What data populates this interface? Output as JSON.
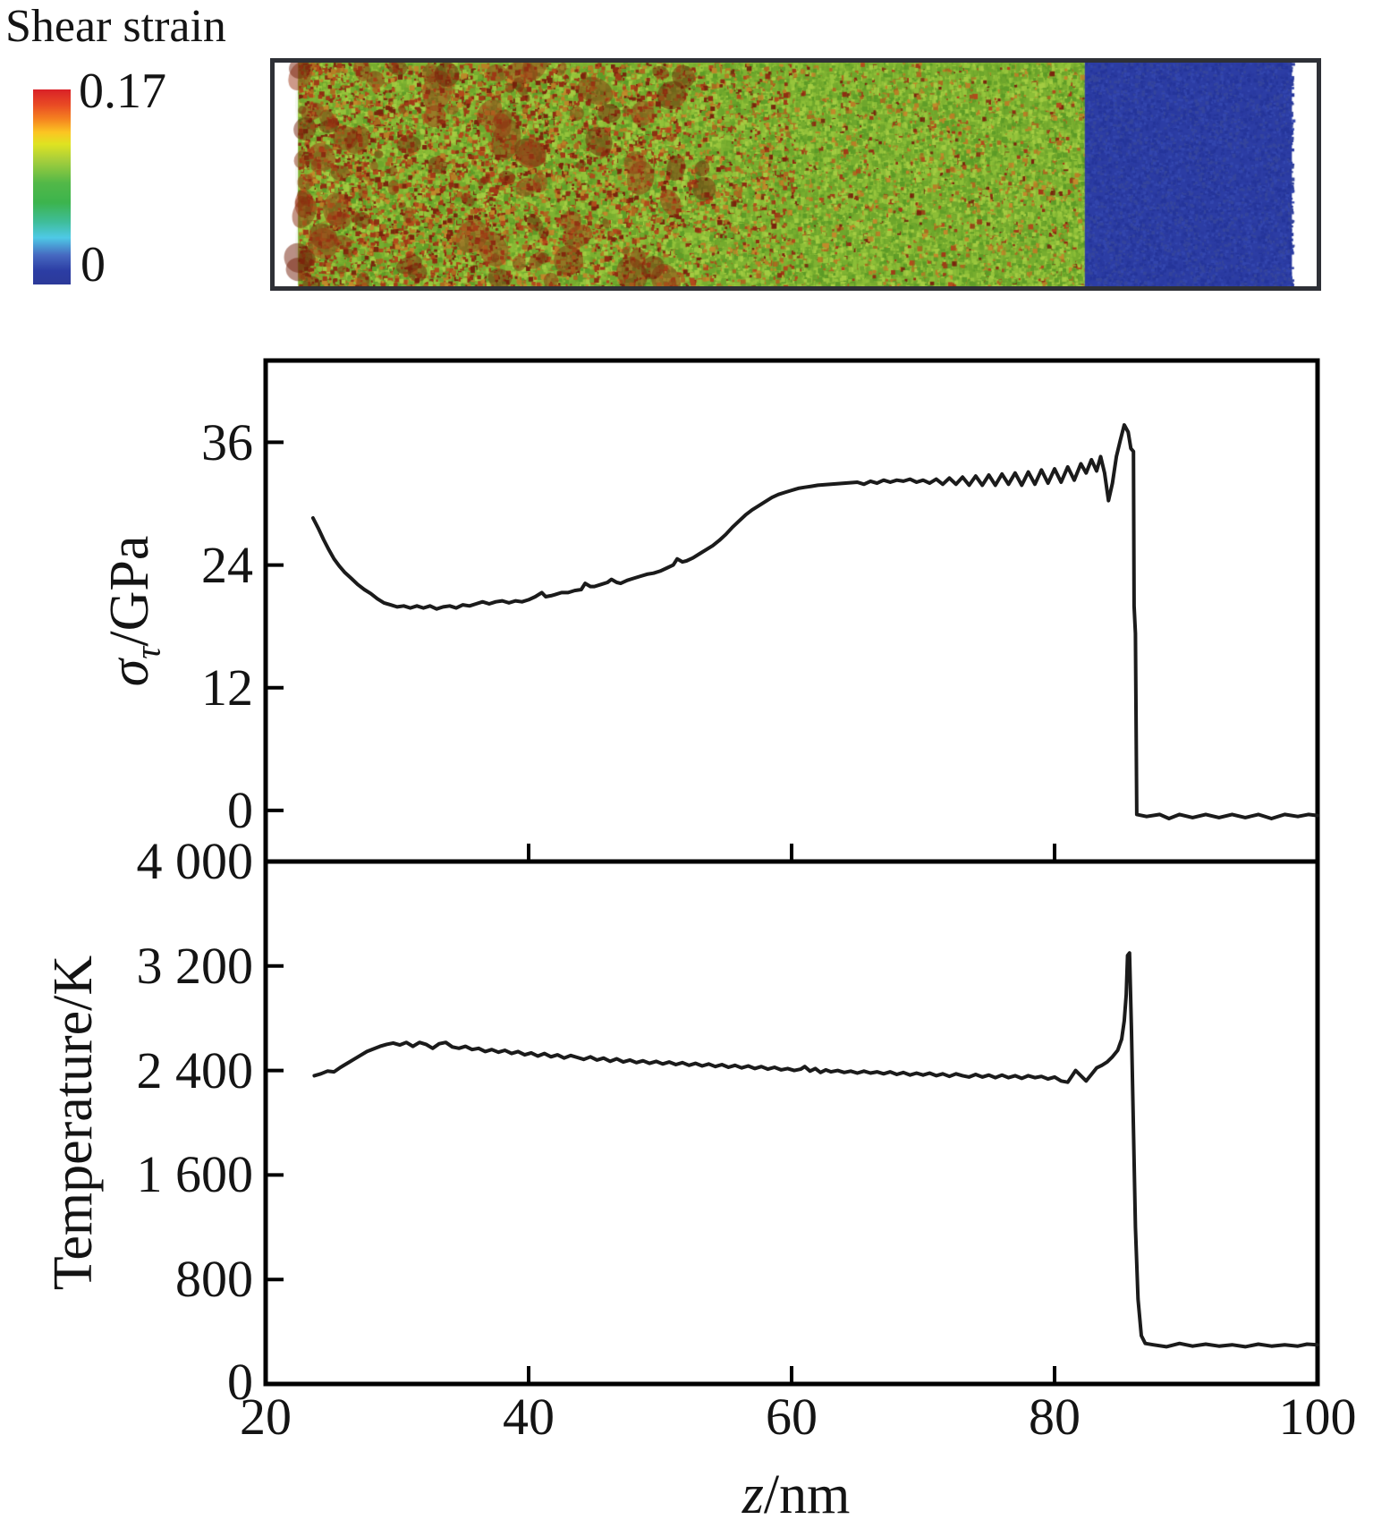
{
  "title": "Shear strain",
  "colorbar": {
    "max_label": "0.17",
    "min_label": "0",
    "gradient_stops": [
      [
        "#d92127",
        0
      ],
      [
        "#e94b24",
        0.08
      ],
      [
        "#f58120",
        0.15
      ],
      [
        "#fbc522",
        0.22
      ],
      [
        "#dfe321",
        0.28
      ],
      [
        "#a8cf3b",
        0.36
      ],
      [
        "#52b848",
        0.48
      ],
      [
        "#3cb44d",
        0.58
      ],
      [
        "#3fbd9a",
        0.68
      ],
      [
        "#4ec9e6",
        0.76
      ],
      [
        "#4668c0",
        0.85
      ],
      [
        "#2c3da4",
        0.93
      ],
      [
        "#2c3a99",
        1
      ]
    ]
  },
  "heatmap": {
    "xlim": [
      20,
      100
    ],
    "regions": [
      {
        "z0": 20,
        "z1": 21.8,
        "type": "white"
      },
      {
        "z0": 21.8,
        "z1": 82.2,
        "type": "mottled"
      },
      {
        "z0": 82.2,
        "z1": 98.1,
        "type": "blue"
      },
      {
        "z0": 98.1,
        "z1": 100,
        "type": "white"
      }
    ],
    "palette": {
      "base_green": "#7fb232",
      "greens": [
        "#6ea62c",
        "#8cbe37",
        "#97c53c",
        "#77ad2f",
        "#a4cc42",
        "#5f9d28"
      ],
      "oranges": [
        "#b97f26",
        "#c18a2b",
        "#ad6a20"
      ],
      "reds": [
        "#a23a17",
        "#8f2d12",
        "#b34a1c",
        "#7a230d"
      ],
      "cluster_reds": [
        "#8a2c0e",
        "#9c3413",
        "#731f0a"
      ],
      "blue": "#2c3da4",
      "blue_noise": [
        "#25359a",
        "#3346ae",
        "#2a3aa0",
        "#35459c"
      ],
      "border": "#2e3036"
    }
  },
  "chart_data": [
    {
      "type": "line",
      "name": "shear-stress-profile",
      "ylabel": "στ/GPa",
      "ylabel_sigma": "σ",
      "ylabel_sub": "τ",
      "ylabel_rest": "/GPa",
      "xlabel": "z/nm",
      "xlim": [
        20,
        100
      ],
      "ylim": [
        -5,
        44
      ],
      "grid": false,
      "yticks": [
        36,
        24,
        12,
        0
      ],
      "ytick_labels": [
        "36",
        "24",
        "12",
        "0"
      ],
      "xticks": [
        40,
        60,
        80
      ],
      "line_color": "#1b1b1b",
      "points": [
        [
          23.6,
          28.6
        ],
        [
          24,
          27.6
        ],
        [
          24.4,
          26.5
        ],
        [
          24.8,
          25.5
        ],
        [
          25.2,
          24.6
        ],
        [
          25.6,
          23.9
        ],
        [
          26,
          23.3
        ],
        [
          26.5,
          22.7
        ],
        [
          27,
          22.1
        ],
        [
          27.5,
          21.6
        ],
        [
          28,
          21.2
        ],
        [
          28.5,
          20.7
        ],
        [
          29,
          20.3
        ],
        [
          29.5,
          20.1
        ],
        [
          30,
          19.9
        ],
        [
          30.5,
          20
        ],
        [
          31,
          19.8
        ],
        [
          31.5,
          20
        ],
        [
          32,
          19.8
        ],
        [
          32.5,
          20
        ],
        [
          33,
          19.7
        ],
        [
          33.5,
          19.9
        ],
        [
          34,
          20
        ],
        [
          34.5,
          19.8
        ],
        [
          35,
          20.1
        ],
        [
          35.5,
          20
        ],
        [
          36,
          20.2
        ],
        [
          36.5,
          20.4
        ],
        [
          37,
          20.2
        ],
        [
          37.5,
          20.4
        ],
        [
          38,
          20.5
        ],
        [
          38.5,
          20.3
        ],
        [
          39,
          20.5
        ],
        [
          39.5,
          20.4
        ],
        [
          40,
          20.6
        ],
        [
          40.5,
          20.9
        ],
        [
          41,
          21.3
        ],
        [
          41.3,
          20.9
        ],
        [
          41.7,
          21
        ],
        [
          42,
          21.1
        ],
        [
          42.5,
          21.3
        ],
        [
          43,
          21.3
        ],
        [
          43.5,
          21.5
        ],
        [
          44,
          21.6
        ],
        [
          44.3,
          22.2
        ],
        [
          44.7,
          21.9
        ],
        [
          45,
          21.9
        ],
        [
          45.5,
          22.1
        ],
        [
          46,
          22.3
        ],
        [
          46.3,
          22.6
        ],
        [
          46.7,
          22.3
        ],
        [
          47,
          22.2
        ],
        [
          47.5,
          22.5
        ],
        [
          48,
          22.7
        ],
        [
          48.5,
          22.9
        ],
        [
          49,
          23.1
        ],
        [
          49.5,
          23.2
        ],
        [
          50,
          23.4
        ],
        [
          50.5,
          23.7
        ],
        [
          51,
          24
        ],
        [
          51.3,
          24.6
        ],
        [
          51.7,
          24.3
        ],
        [
          52,
          24.4
        ],
        [
          52.5,
          24.7
        ],
        [
          53,
          25.1
        ],
        [
          53.5,
          25.5
        ],
        [
          54,
          25.9
        ],
        [
          54.5,
          26.4
        ],
        [
          55,
          27
        ],
        [
          55.5,
          27.7
        ],
        [
          56,
          28.3
        ],
        [
          56.5,
          28.9
        ],
        [
          57,
          29.4
        ],
        [
          57.5,
          29.8
        ],
        [
          58,
          30.2
        ],
        [
          58.5,
          30.6
        ],
        [
          59,
          30.9
        ],
        [
          59.5,
          31.1
        ],
        [
          60,
          31.3
        ],
        [
          60.5,
          31.5
        ],
        [
          61,
          31.6
        ],
        [
          61.5,
          31.7
        ],
        [
          62,
          31.8
        ],
        [
          63,
          31.9
        ],
        [
          64,
          32
        ],
        [
          65,
          32.1
        ],
        [
          65.5,
          31.9
        ],
        [
          66,
          32.2
        ],
        [
          66.5,
          32
        ],
        [
          67,
          32.3
        ],
        [
          67.5,
          32.1
        ],
        [
          68,
          32.3
        ],
        [
          68.5,
          32.2
        ],
        [
          69,
          32.4
        ],
        [
          69.5,
          32.1
        ],
        [
          70,
          32.3
        ],
        [
          70.5,
          32
        ],
        [
          71,
          32.4
        ],
        [
          71.5,
          31.9
        ],
        [
          72,
          32.5
        ],
        [
          72.5,
          31.9
        ],
        [
          73,
          32.6
        ],
        [
          73.5,
          31.8
        ],
        [
          74,
          32.7
        ],
        [
          74.5,
          31.8
        ],
        [
          75,
          32.8
        ],
        [
          75.5,
          31.8
        ],
        [
          76,
          32.9
        ],
        [
          76.5,
          31.9
        ],
        [
          77,
          33
        ],
        [
          77.5,
          31.8
        ],
        [
          78,
          33.1
        ],
        [
          78.5,
          31.9
        ],
        [
          79,
          33.3
        ],
        [
          79.5,
          32
        ],
        [
          80,
          33.4
        ],
        [
          80.5,
          32.1
        ],
        [
          81,
          33.6
        ],
        [
          81.5,
          32.3
        ],
        [
          82,
          33.9
        ],
        [
          82.4,
          33
        ],
        [
          82.8,
          34.3
        ],
        [
          83.2,
          33.2
        ],
        [
          83.5,
          34.6
        ],
        [
          83.8,
          33
        ],
        [
          84.1,
          30.3
        ],
        [
          84.4,
          32
        ],
        [
          84.7,
          34.6
        ],
        [
          85,
          36.2
        ],
        [
          85.3,
          37.7
        ],
        [
          85.6,
          37
        ],
        [
          85.8,
          35.4
        ],
        [
          86,
          35.1
        ],
        [
          86.05,
          20
        ],
        [
          86.15,
          17.3
        ],
        [
          86.25,
          -0.4
        ],
        [
          87,
          -0.6
        ],
        [
          88,
          -0.4
        ],
        [
          88.7,
          -0.8
        ],
        [
          89.5,
          -0.4
        ],
        [
          90.5,
          -0.7
        ],
        [
          91.5,
          -0.4
        ],
        [
          92.5,
          -0.7
        ],
        [
          93.5,
          -0.4
        ],
        [
          94.5,
          -0.7
        ],
        [
          95.5,
          -0.4
        ],
        [
          96.5,
          -0.8
        ],
        [
          97.5,
          -0.4
        ],
        [
          98.5,
          -0.6
        ],
        [
          99.3,
          -0.4
        ],
        [
          100,
          -0.5
        ]
      ]
    },
    {
      "type": "line",
      "name": "temperature-profile",
      "ylabel": "Temperature/K",
      "xlabel": "z/nm",
      "xlim": [
        20,
        100
      ],
      "ylim": [
        0,
        4000
      ],
      "grid": false,
      "yticks": [
        3200,
        2400,
        1600,
        800
      ],
      "ytick_labels": [
        "4 000",
        "3 200",
        "2 400",
        "1 600",
        "800",
        "0"
      ],
      "xticks": [
        40,
        60,
        80
      ],
      "line_color": "#1b1b1b",
      "points": [
        [
          23.7,
          2360
        ],
        [
          24.2,
          2375
        ],
        [
          24.7,
          2395
        ],
        [
          25.2,
          2390
        ],
        [
          25.7,
          2425
        ],
        [
          26.2,
          2455
        ],
        [
          26.7,
          2485
        ],
        [
          27.2,
          2515
        ],
        [
          27.7,
          2545
        ],
        [
          28.2,
          2565
        ],
        [
          28.7,
          2585
        ],
        [
          29.2,
          2600
        ],
        [
          29.7,
          2610
        ],
        [
          30.2,
          2595
        ],
        [
          30.7,
          2615
        ],
        [
          31.2,
          2585
        ],
        [
          31.7,
          2615
        ],
        [
          32.2,
          2600
        ],
        [
          32.7,
          2570
        ],
        [
          33.2,
          2605
        ],
        [
          33.7,
          2615
        ],
        [
          34.2,
          2580
        ],
        [
          34.7,
          2570
        ],
        [
          35.2,
          2585
        ],
        [
          35.7,
          2560
        ],
        [
          36.2,
          2570
        ],
        [
          36.7,
          2545
        ],
        [
          37.2,
          2560
        ],
        [
          37.7,
          2540
        ],
        [
          38.2,
          2555
        ],
        [
          38.7,
          2530
        ],
        [
          39.2,
          2545
        ],
        [
          39.7,
          2520
        ],
        [
          40.2,
          2535
        ],
        [
          40.7,
          2510
        ],
        [
          41.2,
          2530
        ],
        [
          41.7,
          2505
        ],
        [
          42.2,
          2520
        ],
        [
          42.7,
          2495
        ],
        [
          43.2,
          2515
        ],
        [
          43.7,
          2500
        ],
        [
          44.2,
          2485
        ],
        [
          44.7,
          2505
        ],
        [
          45.2,
          2480
        ],
        [
          45.7,
          2495
        ],
        [
          46.2,
          2470
        ],
        [
          46.7,
          2490
        ],
        [
          47.2,
          2465
        ],
        [
          47.7,
          2480
        ],
        [
          48.2,
          2460
        ],
        [
          48.7,
          2475
        ],
        [
          49.2,
          2455
        ],
        [
          49.7,
          2470
        ],
        [
          50.2,
          2450
        ],
        [
          50.7,
          2465
        ],
        [
          51.2,
          2445
        ],
        [
          51.7,
          2460
        ],
        [
          52.2,
          2440
        ],
        [
          52.7,
          2455
        ],
        [
          53.2,
          2435
        ],
        [
          53.7,
          2450
        ],
        [
          54.2,
          2430
        ],
        [
          54.7,
          2445
        ],
        [
          55.2,
          2425
        ],
        [
          55.7,
          2440
        ],
        [
          56.2,
          2420
        ],
        [
          56.7,
          2435
        ],
        [
          57.2,
          2415
        ],
        [
          57.7,
          2430
        ],
        [
          58.2,
          2410
        ],
        [
          58.7,
          2425
        ],
        [
          59.2,
          2405
        ],
        [
          59.7,
          2415
        ],
        [
          60.2,
          2400
        ],
        [
          60.7,
          2410
        ],
        [
          61,
          2430
        ],
        [
          61.4,
          2395
        ],
        [
          61.8,
          2415
        ],
        [
          62.2,
          2385
        ],
        [
          62.6,
          2405
        ],
        [
          63,
          2390
        ],
        [
          63.5,
          2400
        ],
        [
          64,
          2385
        ],
        [
          64.5,
          2395
        ],
        [
          65,
          2380
        ],
        [
          65.5,
          2395
        ],
        [
          66,
          2380
        ],
        [
          66.5,
          2390
        ],
        [
          67,
          2375
        ],
        [
          67.5,
          2390
        ],
        [
          68,
          2370
        ],
        [
          68.5,
          2385
        ],
        [
          69,
          2365
        ],
        [
          69.5,
          2380
        ],
        [
          70,
          2365
        ],
        [
          70.5,
          2380
        ],
        [
          71,
          2360
        ],
        [
          71.5,
          2375
        ],
        [
          72,
          2355
        ],
        [
          72.5,
          2375
        ],
        [
          73,
          2360
        ],
        [
          73.5,
          2350
        ],
        [
          74,
          2370
        ],
        [
          74.5,
          2350
        ],
        [
          75,
          2365
        ],
        [
          75.5,
          2345
        ],
        [
          76,
          2365
        ],
        [
          76.5,
          2345
        ],
        [
          77,
          2360
        ],
        [
          77.5,
          2340
        ],
        [
          78,
          2360
        ],
        [
          78.5,
          2345
        ],
        [
          79,
          2355
        ],
        [
          79.5,
          2335
        ],
        [
          80,
          2350
        ],
        [
          80.5,
          2320
        ],
        [
          81,
          2310
        ],
        [
          81.3,
          2355
        ],
        [
          81.6,
          2400
        ],
        [
          82,
          2360
        ],
        [
          82.4,
          2320
        ],
        [
          82.8,
          2370
        ],
        [
          83.2,
          2420
        ],
        [
          83.6,
          2440
        ],
        [
          84,
          2465
        ],
        [
          84.4,
          2505
        ],
        [
          84.8,
          2555
        ],
        [
          85.1,
          2640
        ],
        [
          85.3,
          2780
        ],
        [
          85.45,
          2980
        ],
        [
          85.55,
          3280
        ],
        [
          85.7,
          3300
        ],
        [
          85.85,
          2700
        ],
        [
          86,
          1950
        ],
        [
          86.15,
          1200
        ],
        [
          86.35,
          650
        ],
        [
          86.6,
          370
        ],
        [
          86.9,
          310
        ],
        [
          87.5,
          300
        ],
        [
          88.5,
          285
        ],
        [
          89.5,
          310
        ],
        [
          90.5,
          290
        ],
        [
          91.5,
          305
        ],
        [
          92.5,
          290
        ],
        [
          93.5,
          300
        ],
        [
          94.5,
          285
        ],
        [
          95.5,
          305
        ],
        [
          96.5,
          290
        ],
        [
          97.5,
          300
        ],
        [
          98.5,
          290
        ],
        [
          99.2,
          305
        ],
        [
          100,
          300
        ]
      ]
    }
  ],
  "xaxis": {
    "label_var": "z",
    "label_rest": "/nm",
    "tick_labels": [
      "20",
      "40",
      "60",
      "80",
      "100"
    ]
  }
}
